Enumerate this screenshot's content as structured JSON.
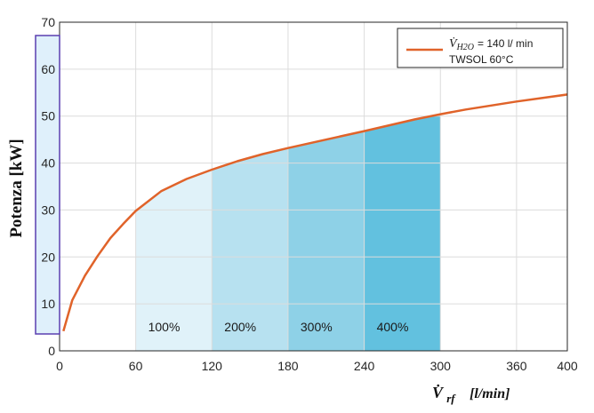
{
  "chart_data": {
    "type": "area",
    "xlim": [
      0,
      400
    ],
    "ylim": [
      0,
      70
    ],
    "x_ticks": [
      "0",
      "60",
      "120",
      "180",
      "240",
      "300",
      "360",
      "400"
    ],
    "y_ticks": [
      "0",
      "10",
      "20",
      "30",
      "40",
      "50",
      "60",
      "70"
    ],
    "grid": true,
    "ylabel": "Potenza [kW]",
    "xlabel": {
      "symbol": "V̇",
      "subscript": "rf",
      "unit": "[l/min]"
    },
    "legend": {
      "position": "top-right",
      "symbol": "V̇",
      "subscript": "H2O",
      "line1_suffix": "= 140 l/ min",
      "line2": "TWSOL 60°C"
    },
    "series": [
      {
        "color": "#e0632a",
        "x": [
          3,
          10,
          20,
          30,
          40,
          50,
          60,
          80,
          100,
          120,
          140,
          160,
          180,
          200,
          240,
          280,
          300,
          320,
          360,
          400
        ],
        "y": [
          4.2,
          10.8,
          16,
          20.2,
          24,
          27,
          29.8,
          34,
          36.6,
          38.6,
          40.4,
          41.9,
          43.2,
          44.4,
          46.8,
          49.3,
          50.4,
          51.4,
          53.1,
          54.6
        ]
      }
    ],
    "bands": [
      {
        "label": "100%",
        "x0": 60,
        "x1": 120,
        "color": "#e0f2f9"
      },
      {
        "label": "200%",
        "x0": 120,
        "x1": 180,
        "color": "#b7e1f0"
      },
      {
        "label": "300%",
        "x0": 180,
        "x1": 240,
        "color": "#8ed1e7"
      },
      {
        "label": "400%",
        "x0": 240,
        "x1": 300,
        "color": "#62c1df"
      }
    ],
    "highlight_color": "#dff0fb",
    "highlight_border": "#5a3fb0"
  }
}
